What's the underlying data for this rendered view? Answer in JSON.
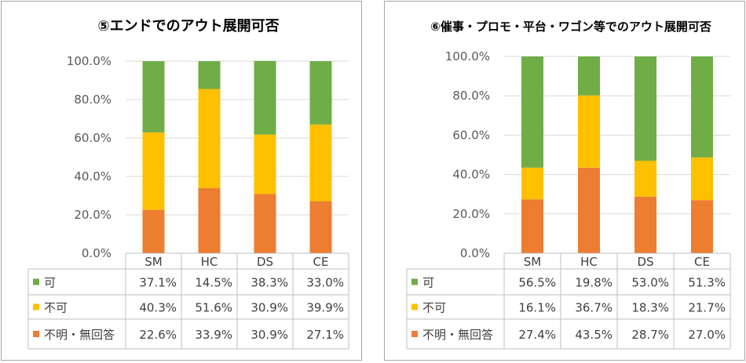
{
  "chart_data": [
    {
      "type": "bar",
      "stacked": true,
      "title": "⑤エンドでのアウト展開可否",
      "categories": [
        "SM",
        "HC",
        "DS",
        "CE"
      ],
      "yticks": [
        "0.0%",
        "20.0%",
        "40.0%",
        "60.0%",
        "80.0%",
        "100.0%"
      ],
      "ylim": [
        0,
        100
      ],
      "series": [
        {
          "name": "可",
          "color": "#70ad47",
          "values": [
            37.1,
            14.5,
            38.3,
            33.0
          ],
          "labels": [
            "37.1%",
            "14.5%",
            "38.3%",
            "33.0%"
          ]
        },
        {
          "name": "不可",
          "color": "#ffc000",
          "values": [
            40.3,
            51.6,
            30.9,
            39.9
          ],
          "labels": [
            "40.3%",
            "51.6%",
            "30.9%",
            "39.9%"
          ]
        },
        {
          "name": "不明・無回答",
          "color": "#ed7d31",
          "values": [
            22.6,
            33.9,
            30.9,
            27.1
          ],
          "labels": [
            "22.6%",
            "33.9%",
            "30.9%",
            "27.1%"
          ]
        }
      ]
    },
    {
      "type": "bar",
      "stacked": true,
      "title": "⑥催事・プロモ・平台・ワゴン等でのアウト展開可否",
      "categories": [
        "SM",
        "HC",
        "DS",
        "CE"
      ],
      "yticks": [
        "0.0%",
        "20.0%",
        "40.0%",
        "60.0%",
        "80.0%",
        "100.0%"
      ],
      "ylim": [
        0,
        100
      ],
      "series": [
        {
          "name": "可",
          "color": "#70ad47",
          "values": [
            56.5,
            19.8,
            53.0,
            51.3
          ],
          "labels": [
            "56.5%",
            "19.8%",
            "53.0%",
            "51.3%"
          ]
        },
        {
          "name": "不可",
          "color": "#ffc000",
          "values": [
            16.1,
            36.7,
            18.3,
            21.7
          ],
          "labels": [
            "16.1%",
            "36.7%",
            "18.3%",
            "21.7%"
          ]
        },
        {
          "name": "不明・無回答",
          "color": "#ed7d31",
          "values": [
            27.4,
            43.5,
            28.7,
            27.0
          ],
          "labels": [
            "27.4%",
            "43.5%",
            "28.7%",
            "27.0%"
          ]
        }
      ]
    }
  ]
}
